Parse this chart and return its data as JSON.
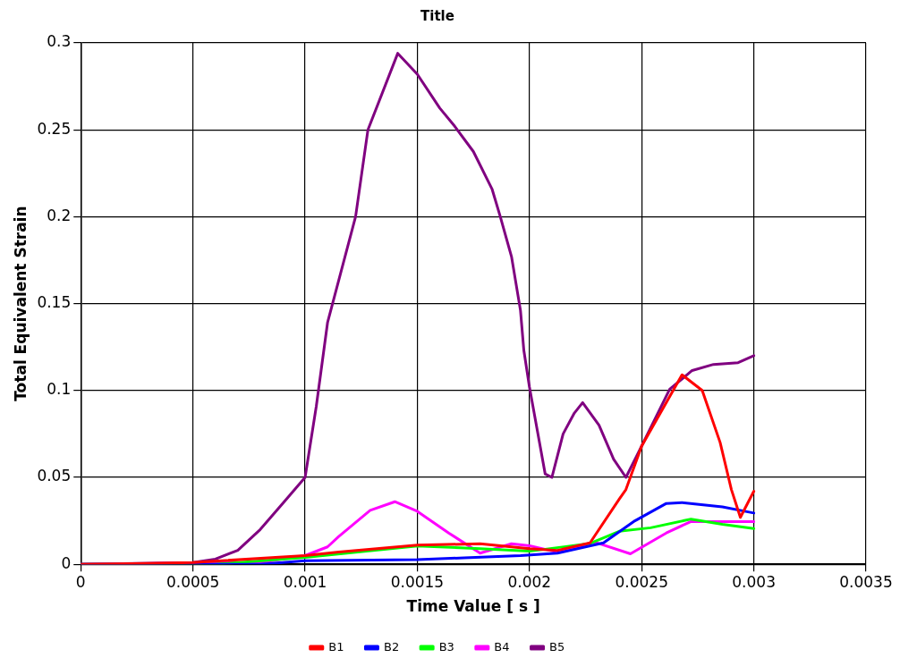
{
  "chart_data": {
    "type": "line",
    "title": "Title",
    "xlabel": "Time Value [ s ]",
    "ylabel": "Total Equivalent Strain",
    "xlim": [
      0,
      0.0035
    ],
    "xticks": [
      0,
      0.0005,
      0.001,
      0.0015,
      0.002,
      0.0025,
      0.003,
      0.0035
    ],
    "ylim": [
      0,
      0.3
    ],
    "yticks": [
      0,
      0.05,
      0.1,
      0.15,
      0.2,
      0.25,
      0.3
    ],
    "grid": true,
    "legend": "bottom",
    "marker": "none",
    "line_style": "solid",
    "series": [
      {
        "name": "B1",
        "color": "#ff0000",
        "x": [
          0,
          0.0003,
          0.0005,
          0.001,
          0.00115,
          0.0015,
          0.00178,
          0.002,
          0.002125,
          0.00227,
          0.0024,
          0.00243,
          0.0025,
          0.00268,
          0.00277,
          0.00285,
          0.0029,
          0.00294,
          0.003
        ],
        "values": [
          0,
          0.0005,
          0.001,
          0.005,
          0.007,
          0.011,
          0.0118,
          0.009,
          0.008,
          0.0123,
          0.0375,
          0.043,
          0.068,
          0.109,
          0.1,
          0.07,
          0.043,
          0.027,
          0.042
        ]
      },
      {
        "name": "B2",
        "color": "#0000ff",
        "x": [
          0,
          0.0008,
          0.001,
          0.0015,
          0.00171,
          0.00196,
          0.002125,
          0.00233,
          0.00247,
          0.00261,
          0.00268,
          0.00286,
          0.003
        ],
        "values": [
          0,
          0,
          0.002,
          0.0027,
          0.0037,
          0.005,
          0.0064,
          0.0123,
          0.025,
          0.035,
          0.0355,
          0.033,
          0.0295
        ]
      },
      {
        "name": "B3",
        "color": "#00ff00",
        "x": [
          0,
          0.0006,
          0.001,
          0.0015,
          0.00178,
          0.002,
          0.00227,
          0.0024,
          0.00254,
          0.00272,
          0.00286,
          0.003
        ],
        "values": [
          0,
          0,
          0.004,
          0.0105,
          0.009,
          0.0075,
          0.012,
          0.019,
          0.021,
          0.026,
          0.023,
          0.0205
        ]
      },
      {
        "name": "B4",
        "color": "#ff00ff",
        "x": [
          0,
          0.0008,
          0.001,
          0.0011,
          0.00115,
          0.00129,
          0.0014,
          0.0015,
          0.00164,
          0.00178,
          0.00192,
          0.002,
          0.002125,
          0.00229,
          0.00245,
          0.00261,
          0.00272,
          0.003
        ],
        "values": [
          0,
          0.001,
          0.005,
          0.01,
          0.016,
          0.031,
          0.036,
          0.0305,
          0.018,
          0.0064,
          0.0118,
          0.0107,
          0.007,
          0.0128,
          0.006,
          0.018,
          0.0246,
          0.0246
        ]
      },
      {
        "name": "B5",
        "color": "#800080",
        "x": [
          0,
          0.0005,
          0.0006,
          0.0007,
          0.0008,
          0.0009,
          0.001,
          0.00105,
          0.0011,
          0.001225,
          0.00128,
          0.001413,
          0.0015,
          0.0016,
          0.001667,
          0.00175,
          0.001833,
          0.00187,
          0.00192,
          0.00196,
          0.001975,
          0.002,
          0.00207,
          0.0021,
          0.00215,
          0.0022,
          0.002237,
          0.00231,
          0.002375,
          0.00243,
          0.0025,
          0.002625,
          0.002725,
          0.00282,
          0.00293,
          0.003
        ],
        "values": [
          0,
          0.001,
          0.003,
          0.008,
          0.02,
          0.035,
          0.05,
          0.091,
          0.139,
          0.2,
          0.25,
          0.294,
          0.282,
          0.2625,
          0.252,
          0.2375,
          0.216,
          0.2,
          0.177,
          0.146,
          0.123,
          0.102,
          0.052,
          0.05,
          0.075,
          0.087,
          0.093,
          0.08,
          0.0605,
          0.05,
          0.068,
          0.1007,
          0.1115,
          0.115,
          0.116,
          0.12
        ]
      }
    ]
  }
}
